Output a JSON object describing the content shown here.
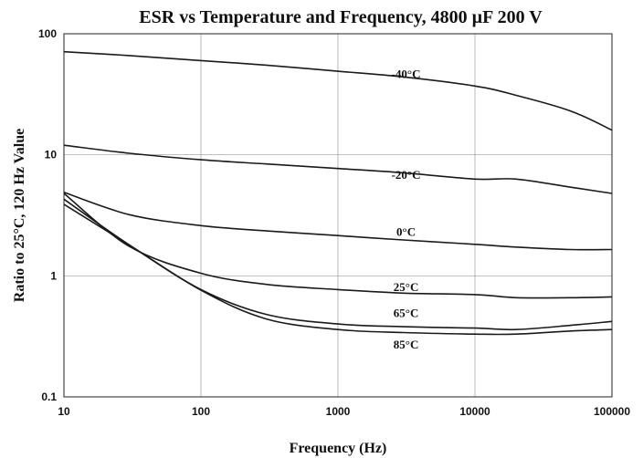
{
  "chart_data": {
    "type": "line",
    "title": "ESR vs Temperature and Frequency,  4800 µF  200 V",
    "xlabel": "Frequency (Hz)",
    "ylabel": "Ratio to 25°C, 120 Hz Value",
    "xscale": "log",
    "yscale": "log",
    "xlim": [
      10,
      100000
    ],
    "ylim": [
      0.1,
      100
    ],
    "grid": true,
    "x_ticks": [
      "10",
      "100",
      "1000",
      "10000",
      "100000"
    ],
    "y_ticks": [
      "0.1",
      "1",
      "10",
      "100"
    ],
    "series": [
      {
        "name": "-40°C",
        "label_at": [
          3000,
          46
        ],
        "points": [
          [
            10,
            71
          ],
          [
            30,
            66
          ],
          [
            100,
            60
          ],
          [
            300,
            55
          ],
          [
            1000,
            49
          ],
          [
            3000,
            44
          ],
          [
            10000,
            37
          ],
          [
            20000,
            31
          ],
          [
            50000,
            23
          ],
          [
            100000,
            16
          ]
        ]
      },
      {
        "name": "-20°C",
        "label_at": [
          3000,
          6.8
        ],
        "points": [
          [
            10,
            12
          ],
          [
            30,
            10.3
          ],
          [
            100,
            9.1
          ],
          [
            300,
            8.4
          ],
          [
            1000,
            7.7
          ],
          [
            3000,
            7.1
          ],
          [
            10000,
            6.3
          ],
          [
            20000,
            6.3
          ],
          [
            50000,
            5.4
          ],
          [
            100000,
            4.8
          ]
        ]
      },
      {
        "name": "0°C",
        "label_at": [
          3000,
          2.3
        ],
        "points": [
          [
            10,
            4.9
          ],
          [
            30,
            3.2
          ],
          [
            100,
            2.6
          ],
          [
            300,
            2.35
          ],
          [
            1000,
            2.15
          ],
          [
            3000,
            1.98
          ],
          [
            10000,
            1.82
          ],
          [
            20000,
            1.73
          ],
          [
            50000,
            1.65
          ],
          [
            100000,
            1.65
          ]
        ]
      },
      {
        "name": "25°C",
        "label_at": [
          3000,
          0.8
        ],
        "points": [
          [
            10,
            4.8
          ],
          [
            30,
            1.75
          ],
          [
            100,
            1.05
          ],
          [
            300,
            0.85
          ],
          [
            1000,
            0.77
          ],
          [
            3000,
            0.72
          ],
          [
            10000,
            0.7
          ],
          [
            20000,
            0.66
          ],
          [
            50000,
            0.66
          ],
          [
            100000,
            0.67
          ]
        ]
      },
      {
        "name": "65°C",
        "label_at": [
          3000,
          0.49
        ],
        "points": [
          [
            10,
            4.3
          ],
          [
            30,
            1.8
          ],
          [
            100,
            0.77
          ],
          [
            300,
            0.48
          ],
          [
            1000,
            0.4
          ],
          [
            3000,
            0.38
          ],
          [
            10000,
            0.37
          ],
          [
            20000,
            0.36
          ],
          [
            50000,
            0.39
          ],
          [
            100000,
            0.42
          ]
        ]
      },
      {
        "name": "85°C",
        "label_at": [
          3000,
          0.27
        ],
        "points": [
          [
            10,
            3.9
          ],
          [
            30,
            1.8
          ],
          [
            100,
            0.76
          ],
          [
            300,
            0.44
          ],
          [
            1000,
            0.36
          ],
          [
            3000,
            0.34
          ],
          [
            10000,
            0.33
          ],
          [
            20000,
            0.33
          ],
          [
            50000,
            0.35
          ],
          [
            100000,
            0.36
          ]
        ]
      }
    ]
  }
}
